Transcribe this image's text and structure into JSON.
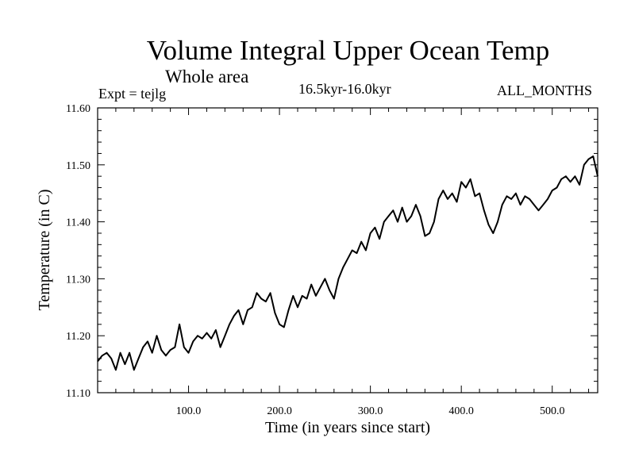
{
  "header": {
    "title": "Volume Integral Upper Ocean Temp",
    "subtitle": "Whole area",
    "experiment": "Expt = tejlg",
    "period": "16.5kyr-16.0kyr",
    "months": "ALL_MONTHS"
  },
  "chart_data": {
    "type": "line",
    "title": "Volume Integral Upper Ocean Temp",
    "xlabel": "Time (in years since start)",
    "ylabel": "Temperature (in C)",
    "xlim": [
      0,
      550
    ],
    "ylim": [
      11.1,
      11.6
    ],
    "x_ticks": [
      100,
      200,
      300,
      400,
      500
    ],
    "x_tick_labels": [
      "100.0",
      "200.0",
      "300.0",
      "400.0",
      "500.0"
    ],
    "y_ticks": [
      11.1,
      11.2,
      11.3,
      11.4,
      11.5,
      11.6
    ],
    "y_tick_labels": [
      "11.10",
      "11.20",
      "11.30",
      "11.40",
      "11.50",
      "11.60"
    ],
    "line_color": "#000000",
    "series": [
      {
        "name": "Volume integral upper ocean temperature",
        "x": [
          0,
          5,
          10,
          15,
          20,
          25,
          30,
          35,
          40,
          45,
          50,
          55,
          60,
          65,
          70,
          75,
          80,
          85,
          90,
          95,
          100,
          105,
          110,
          115,
          120,
          125,
          130,
          135,
          140,
          145,
          150,
          155,
          160,
          165,
          170,
          175,
          180,
          185,
          190,
          195,
          200,
          205,
          210,
          215,
          220,
          225,
          230,
          235,
          240,
          245,
          250,
          255,
          260,
          265,
          270,
          275,
          280,
          285,
          290,
          295,
          300,
          305,
          310,
          315,
          320,
          325,
          330,
          335,
          340,
          345,
          350,
          355,
          360,
          365,
          370,
          375,
          380,
          385,
          390,
          395,
          400,
          405,
          410,
          415,
          420,
          425,
          430,
          435,
          440,
          445,
          450,
          455,
          460,
          465,
          470,
          475,
          480,
          485,
          490,
          495,
          500,
          505,
          510,
          515,
          520,
          525,
          530,
          535,
          540,
          545,
          550
        ],
        "values": [
          11.155,
          11.165,
          11.17,
          11.16,
          11.14,
          11.17,
          11.15,
          11.17,
          11.14,
          11.16,
          11.18,
          11.19,
          11.17,
          11.2,
          11.175,
          11.165,
          11.175,
          11.18,
          11.22,
          11.18,
          11.17,
          11.19,
          11.2,
          11.195,
          11.205,
          11.195,
          11.21,
          11.18,
          11.2,
          11.22,
          11.235,
          11.245,
          11.22,
          11.245,
          11.25,
          11.275,
          11.265,
          11.26,
          11.275,
          11.24,
          11.22,
          11.215,
          11.245,
          11.27,
          11.25,
          11.27,
          11.265,
          11.29,
          11.27,
          11.285,
          11.3,
          11.28,
          11.265,
          11.3,
          11.32,
          11.335,
          11.35,
          11.345,
          11.365,
          11.35,
          11.38,
          11.39,
          11.37,
          11.4,
          11.41,
          11.42,
          11.4,
          11.425,
          11.4,
          11.41,
          11.43,
          11.41,
          11.375,
          11.38,
          11.4,
          11.44,
          11.455,
          11.44,
          11.45,
          11.435,
          11.47,
          11.46,
          11.475,
          11.445,
          11.45,
          11.42,
          11.395,
          11.38,
          11.4,
          11.43,
          11.445,
          11.44,
          11.45,
          11.43,
          11.445,
          11.44,
          11.43,
          11.42,
          11.43,
          11.44,
          11.455,
          11.46,
          11.475,
          11.48,
          11.47,
          11.48,
          11.465,
          11.5,
          11.51,
          11.515,
          11.48
        ]
      }
    ]
  }
}
